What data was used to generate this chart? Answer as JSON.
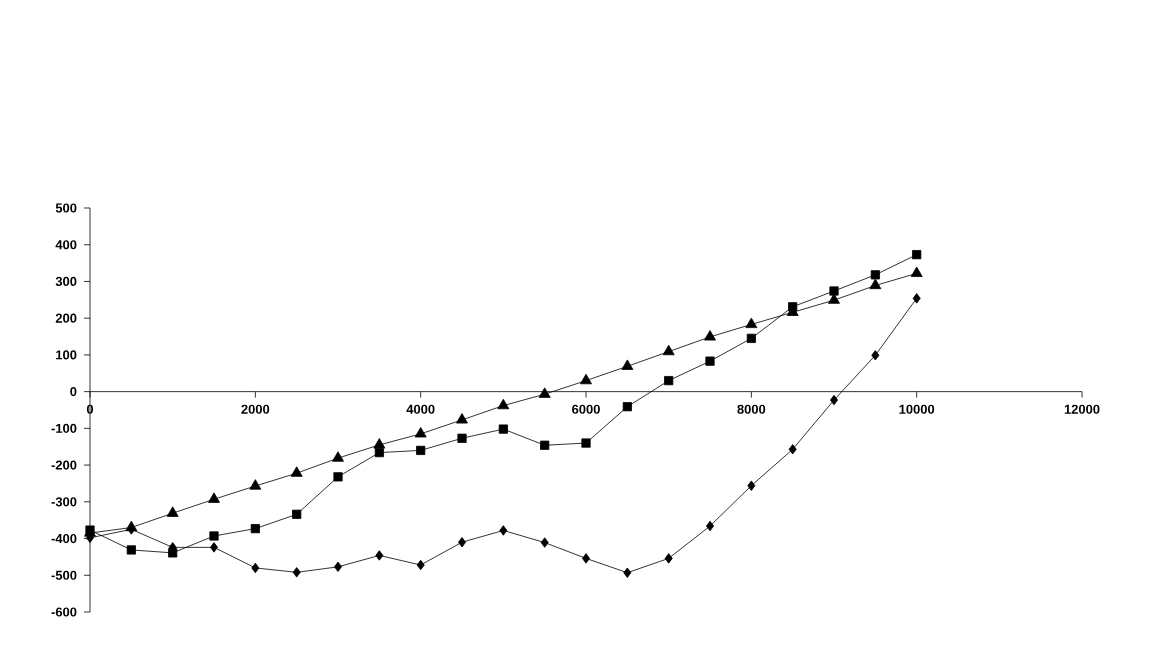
{
  "chart_data": {
    "type": "line",
    "x": [
      0,
      500,
      1000,
      1500,
      2000,
      2500,
      3000,
      3500,
      4000,
      4500,
      5000,
      5500,
      6000,
      6500,
      7000,
      7500,
      8000,
      8500,
      9000,
      9500,
      10000
    ],
    "xlim": [
      0,
      12000
    ],
    "xticks": [
      0,
      2000,
      4000,
      6000,
      8000,
      10000,
      12000
    ],
    "ylim": [
      -600,
      500
    ],
    "yticks": [
      -600,
      -500,
      -400,
      -300,
      -200,
      -100,
      0,
      100,
      200,
      300,
      400,
      500
    ],
    "line_style": "solid",
    "series": [
      {
        "color": "#000000",
        "marker": "square",
        "values": [
          -377,
          -431,
          -439,
          -393,
          -373,
          -334,
          -232,
          -166,
          -160,
          -127,
          -102,
          -146,
          -140,
          -41,
          30,
          83,
          145,
          231,
          274,
          318,
          373
        ]
      },
      {
        "color": "#000000",
        "marker": "triangle",
        "values": [
          -385,
          -370,
          -331,
          -293,
          -257,
          -222,
          -181,
          -145,
          -115,
          -77,
          -38,
          -7,
          30,
          69,
          109,
          149,
          183,
          216,
          249,
          289,
          322
        ]
      },
      {
        "color": "#000000",
        "marker": "diamond",
        "values": [
          -398,
          -375,
          -424,
          -424,
          -480,
          -492,
          -477,
          -446,
          -472,
          -410,
          -378,
          -411,
          -454,
          -493,
          -454,
          -366,
          -256,
          -157,
          -23,
          99,
          254
        ]
      }
    ]
  }
}
